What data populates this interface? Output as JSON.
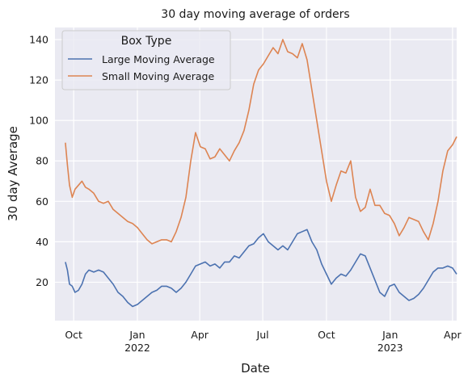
{
  "chart_data": {
    "type": "line",
    "title": "30 day moving average of orders",
    "xlabel": "Date",
    "ylabel": "30 day Average",
    "x_axis_type": "date",
    "xlim": [
      "2021-09-04",
      "2023-04-07"
    ],
    "ylim": [
      1,
      146
    ],
    "yticks": [
      20,
      40,
      60,
      80,
      100,
      120,
      140
    ],
    "xticks": [
      {
        "date": "2021-10-01",
        "label": "Oct",
        "sublabel": ""
      },
      {
        "date": "2022-01-01",
        "label": "Jan",
        "sublabel": "2022"
      },
      {
        "date": "2022-04-01",
        "label": "Apr",
        "sublabel": ""
      },
      {
        "date": "2022-07-01",
        "label": "Jul",
        "sublabel": ""
      },
      {
        "date": "2022-10-01",
        "label": "Oct",
        "sublabel": ""
      },
      {
        "date": "2023-01-01",
        "label": "Jan",
        "sublabel": "2023"
      },
      {
        "date": "2023-04-01",
        "label": "Apr",
        "sublabel": ""
      }
    ],
    "grid": true,
    "legend": {
      "title": "Box Type",
      "position": "top-left"
    },
    "series": [
      {
        "name": "Large Moving Average",
        "color": "#4c72b0",
        "points": [
          [
            "2021-09-19",
            30
          ],
          [
            "2021-09-22",
            26
          ],
          [
            "2021-09-25",
            19
          ],
          [
            "2021-09-29",
            18
          ],
          [
            "2021-10-03",
            15
          ],
          [
            "2021-10-08",
            16
          ],
          [
            "2021-10-13",
            19
          ],
          [
            "2021-10-18",
            24
          ],
          [
            "2021-10-23",
            26
          ],
          [
            "2021-10-30",
            25
          ],
          [
            "2021-11-06",
            26
          ],
          [
            "2021-11-13",
            25
          ],
          [
            "2021-11-20",
            22
          ],
          [
            "2021-11-27",
            19
          ],
          [
            "2021-12-04",
            15
          ],
          [
            "2021-12-11",
            13
          ],
          [
            "2021-12-18",
            10
          ],
          [
            "2021-12-25",
            8
          ],
          [
            "2022-01-01",
            9
          ],
          [
            "2022-01-08",
            11
          ],
          [
            "2022-01-15",
            13
          ],
          [
            "2022-01-22",
            15
          ],
          [
            "2022-01-29",
            16
          ],
          [
            "2022-02-05",
            18
          ],
          [
            "2022-02-12",
            18
          ],
          [
            "2022-02-19",
            17
          ],
          [
            "2022-02-26",
            15
          ],
          [
            "2022-03-05",
            17
          ],
          [
            "2022-03-12",
            20
          ],
          [
            "2022-03-19",
            24
          ],
          [
            "2022-03-26",
            28
          ],
          [
            "2022-04-02",
            29
          ],
          [
            "2022-04-09",
            30
          ],
          [
            "2022-04-16",
            28
          ],
          [
            "2022-04-23",
            29
          ],
          [
            "2022-04-30",
            27
          ],
          [
            "2022-05-07",
            30
          ],
          [
            "2022-05-14",
            30
          ],
          [
            "2022-05-21",
            33
          ],
          [
            "2022-05-28",
            32
          ],
          [
            "2022-06-04",
            35
          ],
          [
            "2022-06-11",
            38
          ],
          [
            "2022-06-18",
            39
          ],
          [
            "2022-06-25",
            42
          ],
          [
            "2022-07-02",
            44
          ],
          [
            "2022-07-09",
            40
          ],
          [
            "2022-07-16",
            38
          ],
          [
            "2022-07-23",
            36
          ],
          [
            "2022-07-30",
            38
          ],
          [
            "2022-08-06",
            36
          ],
          [
            "2022-08-13",
            40
          ],
          [
            "2022-08-20",
            44
          ],
          [
            "2022-08-27",
            45
          ],
          [
            "2022-09-03",
            46
          ],
          [
            "2022-09-10",
            40
          ],
          [
            "2022-09-17",
            36
          ],
          [
            "2022-09-24",
            29
          ],
          [
            "2022-10-01",
            24
          ],
          [
            "2022-10-08",
            19
          ],
          [
            "2022-10-15",
            22
          ],
          [
            "2022-10-22",
            24
          ],
          [
            "2022-10-29",
            23
          ],
          [
            "2022-11-05",
            26
          ],
          [
            "2022-11-12",
            30
          ],
          [
            "2022-11-19",
            34
          ],
          [
            "2022-11-26",
            33
          ],
          [
            "2022-12-03",
            27
          ],
          [
            "2022-12-10",
            21
          ],
          [
            "2022-12-17",
            15
          ],
          [
            "2022-12-24",
            13
          ],
          [
            "2022-12-31",
            18
          ],
          [
            "2023-01-07",
            19
          ],
          [
            "2023-01-14",
            15
          ],
          [
            "2023-01-21",
            13
          ],
          [
            "2023-01-28",
            11
          ],
          [
            "2023-02-04",
            12
          ],
          [
            "2023-02-11",
            14
          ],
          [
            "2023-02-18",
            17
          ],
          [
            "2023-02-25",
            21
          ],
          [
            "2023-03-04",
            25
          ],
          [
            "2023-03-11",
            27
          ],
          [
            "2023-03-18",
            27
          ],
          [
            "2023-03-25",
            28
          ],
          [
            "2023-04-01",
            27
          ],
          [
            "2023-04-07",
            24
          ]
        ]
      },
      {
        "name": "Small Moving Average",
        "color": "#dd8452",
        "points": [
          [
            "2021-09-19",
            89
          ],
          [
            "2021-09-22",
            78
          ],
          [
            "2021-09-25",
            68
          ],
          [
            "2021-09-29",
            62
          ],
          [
            "2021-10-03",
            66
          ],
          [
            "2021-10-08",
            68
          ],
          [
            "2021-10-13",
            70
          ],
          [
            "2021-10-18",
            67
          ],
          [
            "2021-10-23",
            66
          ],
          [
            "2021-10-30",
            64
          ],
          [
            "2021-11-06",
            60
          ],
          [
            "2021-11-13",
            59
          ],
          [
            "2021-11-20",
            60
          ],
          [
            "2021-11-27",
            56
          ],
          [
            "2021-12-04",
            54
          ],
          [
            "2021-12-11",
            52
          ],
          [
            "2021-12-18",
            50
          ],
          [
            "2021-12-25",
            49
          ],
          [
            "2022-01-01",
            47
          ],
          [
            "2022-01-08",
            44
          ],
          [
            "2022-01-15",
            41
          ],
          [
            "2022-01-22",
            39
          ],
          [
            "2022-01-29",
            40
          ],
          [
            "2022-02-05",
            41
          ],
          [
            "2022-02-12",
            41
          ],
          [
            "2022-02-19",
            40
          ],
          [
            "2022-02-26",
            45
          ],
          [
            "2022-03-05",
            52
          ],
          [
            "2022-03-12",
            62
          ],
          [
            "2022-03-19",
            80
          ],
          [
            "2022-03-26",
            94
          ],
          [
            "2022-04-02",
            87
          ],
          [
            "2022-04-09",
            86
          ],
          [
            "2022-04-16",
            81
          ],
          [
            "2022-04-23",
            82
          ],
          [
            "2022-04-30",
            86
          ],
          [
            "2022-05-07",
            83
          ],
          [
            "2022-05-14",
            80
          ],
          [
            "2022-05-21",
            85
          ],
          [
            "2022-05-28",
            89
          ],
          [
            "2022-06-04",
            95
          ],
          [
            "2022-06-11",
            105
          ],
          [
            "2022-06-18",
            118
          ],
          [
            "2022-06-25",
            125
          ],
          [
            "2022-07-02",
            128
          ],
          [
            "2022-07-09",
            132
          ],
          [
            "2022-07-16",
            136
          ],
          [
            "2022-07-23",
            133
          ],
          [
            "2022-07-30",
            140
          ],
          [
            "2022-08-06",
            134
          ],
          [
            "2022-08-13",
            133
          ],
          [
            "2022-08-20",
            131
          ],
          [
            "2022-08-27",
            138
          ],
          [
            "2022-09-03",
            130
          ],
          [
            "2022-09-10",
            115
          ],
          [
            "2022-09-17",
            100
          ],
          [
            "2022-09-24",
            85
          ],
          [
            "2022-10-01",
            70
          ],
          [
            "2022-10-08",
            60
          ],
          [
            "2022-10-15",
            68
          ],
          [
            "2022-10-22",
            75
          ],
          [
            "2022-10-29",
            74
          ],
          [
            "2022-11-05",
            80
          ],
          [
            "2022-11-12",
            62
          ],
          [
            "2022-11-19",
            55
          ],
          [
            "2022-11-26",
            57
          ],
          [
            "2022-12-03",
            66
          ],
          [
            "2022-12-10",
            58
          ],
          [
            "2022-12-17",
            58
          ],
          [
            "2022-12-24",
            54
          ],
          [
            "2022-12-31",
            53
          ],
          [
            "2023-01-07",
            49
          ],
          [
            "2023-01-14",
            43
          ],
          [
            "2023-01-21",
            47
          ],
          [
            "2023-01-28",
            52
          ],
          [
            "2023-02-04",
            51
          ],
          [
            "2023-02-11",
            50
          ],
          [
            "2023-02-18",
            45
          ],
          [
            "2023-02-25",
            41
          ],
          [
            "2023-03-04",
            49
          ],
          [
            "2023-03-11",
            60
          ],
          [
            "2023-03-18",
            75
          ],
          [
            "2023-03-25",
            85
          ],
          [
            "2023-04-01",
            88
          ],
          [
            "2023-04-07",
            92
          ]
        ]
      }
    ]
  }
}
